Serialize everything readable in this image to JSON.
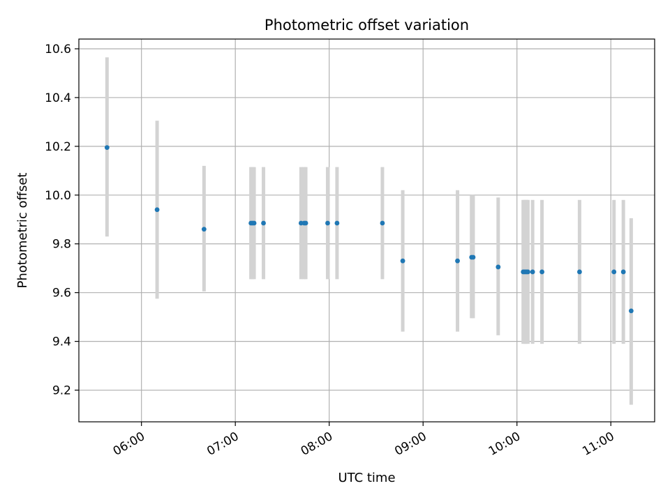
{
  "chart_data": {
    "type": "scatter",
    "title": "Photometric offset variation",
    "xlabel": "UTC time",
    "ylabel": "Photometric offset",
    "x_unit": "UTC time (HH:MM)",
    "xlim": [
      "05:20",
      "11:28"
    ],
    "ylim": [
      9.07,
      10.64
    ],
    "x_ticks": [
      "06:00",
      "07:00",
      "08:00",
      "09:00",
      "10:00",
      "11:00"
    ],
    "y_ticks": [
      9.2,
      9.4,
      9.6,
      9.8,
      10.0,
      10.2,
      10.4,
      10.6
    ],
    "grid": true,
    "point_color": "#1f77b4",
    "errorbar_color": "#d3d3d3",
    "series": [
      {
        "points": [
          {
            "x": "05:38",
            "y": 10.195,
            "lo": 9.83,
            "hi": 10.565
          },
          {
            "x": "06:10",
            "y": 9.94,
            "lo": 9.575,
            "hi": 10.305
          },
          {
            "x": "06:40",
            "y": 9.86,
            "lo": 9.605,
            "hi": 10.12
          },
          {
            "x": "07:10",
            "y": 9.885,
            "lo": 9.655,
            "hi": 10.115
          },
          {
            "x": "07:11",
            "y": 9.885,
            "lo": 9.655,
            "hi": 10.115
          },
          {
            "x": "07:12",
            "y": 9.885,
            "lo": 9.655,
            "hi": 10.115
          },
          {
            "x": "07:18",
            "y": 9.885,
            "lo": 9.655,
            "hi": 10.115
          },
          {
            "x": "07:42",
            "y": 9.885,
            "lo": 9.655,
            "hi": 10.115
          },
          {
            "x": "07:44",
            "y": 9.885,
            "lo": 9.655,
            "hi": 10.115
          },
          {
            "x": "07:45",
            "y": 9.885,
            "lo": 9.655,
            "hi": 10.115
          },
          {
            "x": "07:59",
            "y": 9.885,
            "lo": 9.655,
            "hi": 10.115
          },
          {
            "x": "08:05",
            "y": 9.885,
            "lo": 9.655,
            "hi": 10.115
          },
          {
            "x": "08:34",
            "y": 9.885,
            "lo": 9.655,
            "hi": 10.115
          },
          {
            "x": "08:47",
            "y": 9.73,
            "lo": 9.44,
            "hi": 10.02
          },
          {
            "x": "09:22",
            "y": 9.73,
            "lo": 9.44,
            "hi": 10.02
          },
          {
            "x": "09:31",
            "y": 9.745,
            "lo": 9.495,
            "hi": 10.0
          },
          {
            "x": "09:32",
            "y": 9.745,
            "lo": 9.495,
            "hi": 10.0
          },
          {
            "x": "09:48",
            "y": 9.705,
            "lo": 9.425,
            "hi": 9.99
          },
          {
            "x": "10:04",
            "y": 9.685,
            "lo": 9.39,
            "hi": 9.98
          },
          {
            "x": "10:05",
            "y": 9.685,
            "lo": 9.39,
            "hi": 9.98
          },
          {
            "x": "10:06",
            "y": 9.685,
            "lo": 9.39,
            "hi": 9.98
          },
          {
            "x": "10:07",
            "y": 9.685,
            "lo": 9.39,
            "hi": 9.98
          },
          {
            "x": "10:10",
            "y": 9.685,
            "lo": 9.39,
            "hi": 9.98
          },
          {
            "x": "10:16",
            "y": 9.685,
            "lo": 9.39,
            "hi": 9.98
          },
          {
            "x": "10:40",
            "y": 9.685,
            "lo": 9.39,
            "hi": 9.98
          },
          {
            "x": "11:02",
            "y": 9.685,
            "lo": 9.39,
            "hi": 9.98
          },
          {
            "x": "11:08",
            "y": 9.685,
            "lo": 9.39,
            "hi": 9.98
          },
          {
            "x": "11:13",
            "y": 9.525,
            "lo": 9.14,
            "hi": 9.905
          }
        ]
      }
    ]
  }
}
